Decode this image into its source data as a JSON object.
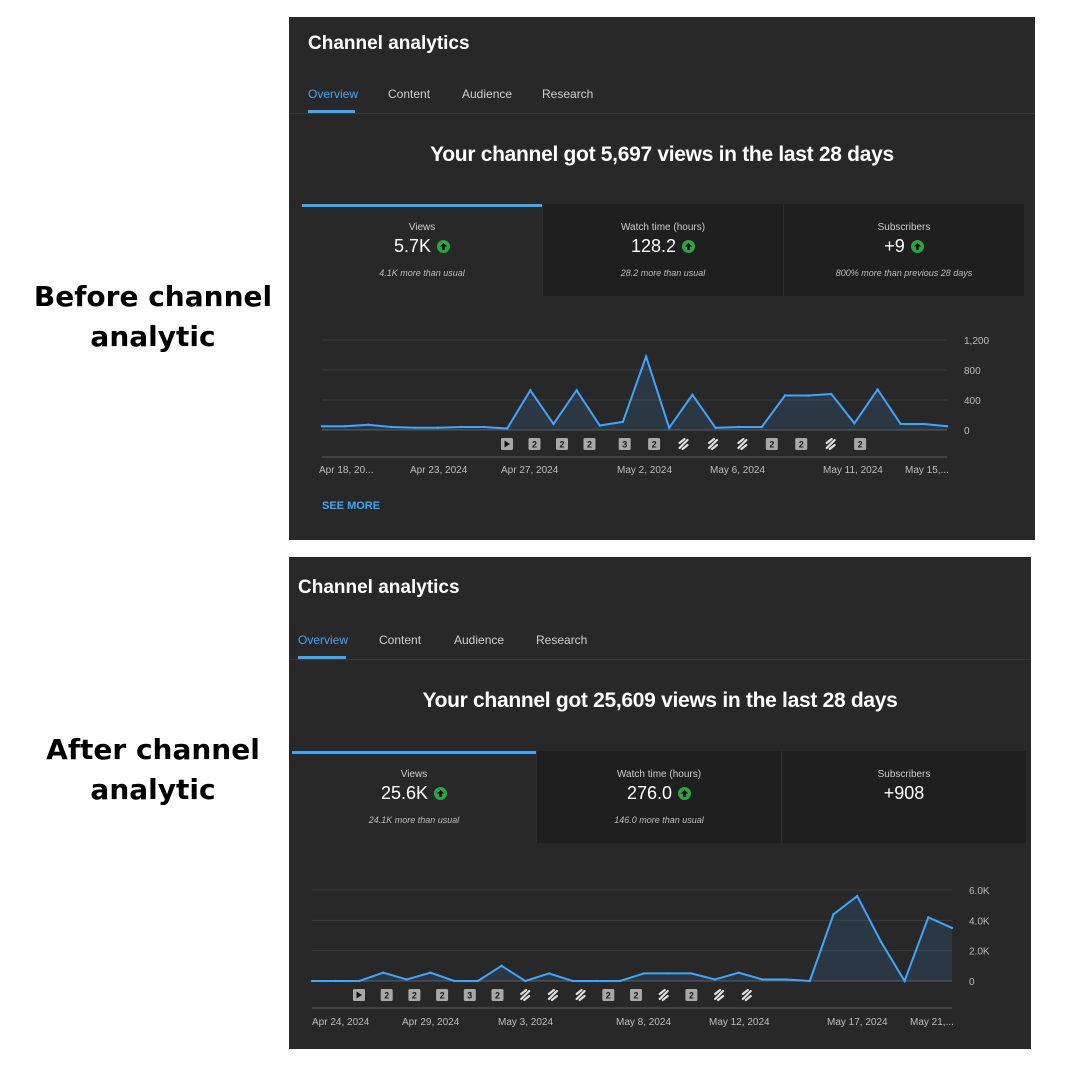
{
  "labels": {
    "before": [
      "Before channel",
      "analytic"
    ],
    "after": [
      "After channel",
      "analytic"
    ]
  },
  "colors": {
    "accent": "#3ea6ff",
    "panel": "#282828",
    "up": "#2ba640",
    "line": "#3ea6ff"
  },
  "panels": [
    {
      "title": "Channel analytics",
      "tabs": [
        "Overview",
        "Content",
        "Audience",
        "Research"
      ],
      "active_tab": "Overview",
      "headline": "Your channel got 5,697 views in the last 28 days",
      "cards": [
        {
          "label": "Views",
          "value": "5.7K",
          "trend": "up-arrow-icon",
          "note": "4.1K more than usual"
        },
        {
          "label": "Watch time (hours)",
          "value": "128.2",
          "trend": "up-arrow-icon",
          "note": "28.2 more than usual"
        },
        {
          "label": "Subscribers",
          "value": "+9",
          "trend": "up-arrow-icon",
          "note": "800% more than previous 28 days"
        }
      ],
      "see_more": "SEE MORE"
    },
    {
      "title": "Channel analytics",
      "tabs": [
        "Overview",
        "Content",
        "Audience",
        "Research"
      ],
      "active_tab": "Overview",
      "headline": "Your channel got 25,609 views in the last 28 days",
      "cards": [
        {
          "label": "Views",
          "value": "25.6K",
          "trend": "up-arrow-icon",
          "note": "24.1K more than usual"
        },
        {
          "label": "Watch time (hours)",
          "value": "276.0",
          "trend": "up-arrow-icon",
          "note": "146.0 more than usual"
        },
        {
          "label": "Subscribers",
          "value": "+908",
          "trend": "",
          "note": ""
        }
      ]
    }
  ],
  "chart_data": [
    {
      "type": "area",
      "series": [
        {
          "values": [
            50,
            50,
            70,
            40,
            30,
            30,
            40,
            40,
            20,
            530,
            80,
            530,
            60,
            110,
            980,
            30,
            470,
            30,
            40,
            40,
            460,
            460,
            480,
            90,
            540,
            80,
            80,
            50
          ]
        }
      ],
      "x_tick_labels": [
        "Apr 18, 20...",
        "Apr 23, 2024",
        "Apr 27, 2024",
        "May 2, 2024",
        "May 6, 2024",
        "May 11, 2024",
        "May 15,..."
      ],
      "y_tick_labels": [
        "1,200",
        "800",
        "400",
        "0"
      ],
      "ylim": [
        0,
        1200
      ],
      "markers": [
        "play",
        "2",
        "2",
        "2",
        "3",
        "2",
        "short",
        "short",
        "short",
        "2",
        "2",
        "short",
        "2"
      ]
    },
    {
      "type": "area",
      "series": [
        {
          "values": [
            0,
            0,
            0,
            550,
            100,
            550,
            0,
            0,
            1000,
            0,
            500,
            0,
            0,
            0,
            500,
            500,
            500,
            100,
            550,
            100,
            100,
            0,
            4400,
            5600,
            2600,
            0,
            4200,
            3500
          ]
        }
      ],
      "x_tick_labels": [
        "Apr 24, 2024",
        "Apr 29, 2024",
        "May 3, 2024",
        "May 8, 2024",
        "May 12, 2024",
        "May 17, 2024",
        "May 21,..."
      ],
      "y_tick_labels": [
        "6.0K",
        "4.0K",
        "2.0K",
        "0"
      ],
      "ylim": [
        0,
        6000
      ],
      "markers": [
        "play",
        "2",
        "2",
        "2",
        "3",
        "2",
        "short",
        "short",
        "short",
        "2",
        "2",
        "short",
        "2",
        "short",
        "short"
      ]
    }
  ]
}
